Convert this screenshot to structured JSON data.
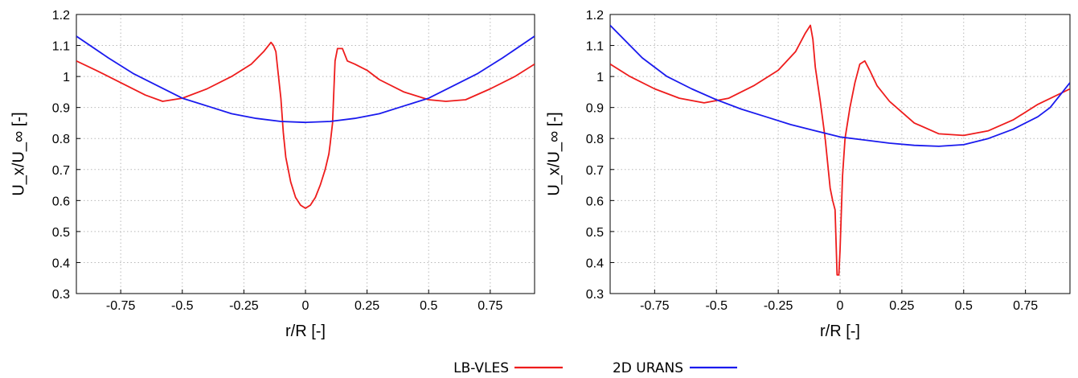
{
  "chart_data": [
    {
      "type": "line",
      "xlabel": "r/R [-]",
      "ylabel": "U_x/U_∞ [-]",
      "xlim": [
        -0.93,
        0.93
      ],
      "ylim": [
        0.3,
        1.2
      ],
      "xticks": [
        -0.75,
        -0.5,
        -0.25,
        0,
        0.25,
        0.5,
        0.75
      ],
      "xtick_labels": [
        "-0.75",
        "-0.5",
        "-0.25",
        "0",
        "0.25",
        "0.5",
        "0.75"
      ],
      "yticks": [
        0.3,
        0.4,
        0.5,
        0.6,
        0.7,
        0.8,
        0.9,
        1.0,
        1.1,
        1.2
      ],
      "ytick_labels": [
        "0.3",
        "0.4",
        "0.5",
        "0.6",
        "0.7",
        "0.8",
        "0.9",
        "1",
        "1.1",
        "1.2"
      ],
      "grid": true,
      "series": [
        {
          "name": "LB-VLES",
          "color": "#ee1c1c",
          "x": [
            -0.93,
            -0.85,
            -0.75,
            -0.65,
            -0.58,
            -0.5,
            -0.4,
            -0.3,
            -0.22,
            -0.17,
            -0.14,
            -0.13,
            -0.12,
            -0.115,
            -0.1,
            -0.09,
            -0.08,
            -0.06,
            -0.04,
            -0.02,
            0,
            0.02,
            0.04,
            0.06,
            0.08,
            0.095,
            0.1,
            0.11,
            0.12,
            0.13,
            0.15,
            0.17,
            0.2,
            0.25,
            0.3,
            0.4,
            0.5,
            0.57,
            0.65,
            0.75,
            0.85,
            0.93
          ],
          "y": [
            1.05,
            1.02,
            0.98,
            0.94,
            0.92,
            0.93,
            0.96,
            1.0,
            1.04,
            1.08,
            1.11,
            1.1,
            1.08,
            1.04,
            0.93,
            0.82,
            0.74,
            0.66,
            0.61,
            0.585,
            0.575,
            0.585,
            0.61,
            0.65,
            0.7,
            0.75,
            0.78,
            0.85,
            1.05,
            1.09,
            1.09,
            1.05,
            1.04,
            1.02,
            0.99,
            0.95,
            0.925,
            0.92,
            0.925,
            0.96,
            1.0,
            1.04
          ]
        },
        {
          "name": "2D URANS",
          "color": "#1a1aee",
          "x": [
            -0.93,
            -0.8,
            -0.7,
            -0.6,
            -0.5,
            -0.4,
            -0.3,
            -0.2,
            -0.1,
            0,
            0.1,
            0.2,
            0.3,
            0.4,
            0.5,
            0.6,
            0.7,
            0.8,
            0.93
          ],
          "y": [
            1.13,
            1.06,
            1.01,
            0.97,
            0.93,
            0.905,
            0.88,
            0.865,
            0.855,
            0.852,
            0.855,
            0.865,
            0.88,
            0.905,
            0.93,
            0.97,
            1.01,
            1.06,
            1.13
          ]
        }
      ]
    },
    {
      "type": "line",
      "xlabel": "r/R [-]",
      "ylabel": "U_x/U_∞ [-]",
      "xlim": [
        -0.93,
        0.93
      ],
      "ylim": [
        0.3,
        1.2
      ],
      "xticks": [
        -0.75,
        -0.5,
        -0.25,
        0,
        0.25,
        0.5,
        0.75
      ],
      "xtick_labels": [
        "-0.75",
        "-0.5",
        "-0.25",
        "0",
        "0.25",
        "0.5",
        "0.75"
      ],
      "yticks": [
        0.3,
        0.4,
        0.5,
        0.6,
        0.7,
        0.8,
        0.9,
        1.0,
        1.1,
        1.2
      ],
      "ytick_labels": [
        "0.3",
        "0.4",
        "0.5",
        "0.6",
        "0.7",
        "0.8",
        "0.9",
        "1",
        "1.1",
        "1.2"
      ],
      "grid": true,
      "series": [
        {
          "name": "LB-VLES",
          "color": "#ee1c1c",
          "x": [
            -0.93,
            -0.85,
            -0.75,
            -0.65,
            -0.55,
            -0.45,
            -0.35,
            -0.25,
            -0.18,
            -0.14,
            -0.12,
            -0.11,
            -0.1,
            -0.08,
            -0.06,
            -0.04,
            -0.03,
            -0.02,
            -0.012,
            -0.005,
            0,
            0.01,
            0.02,
            0.04,
            0.06,
            0.08,
            0.1,
            0.12,
            0.15,
            0.2,
            0.3,
            0.4,
            0.5,
            0.6,
            0.7,
            0.8,
            0.93
          ],
          "y": [
            1.04,
            1.0,
            0.96,
            0.93,
            0.915,
            0.93,
            0.97,
            1.02,
            1.08,
            1.14,
            1.165,
            1.12,
            1.03,
            0.92,
            0.8,
            0.64,
            0.6,
            0.57,
            0.36,
            0.36,
            0.44,
            0.68,
            0.8,
            0.9,
            0.98,
            1.04,
            1.05,
            1.02,
            0.97,
            0.92,
            0.85,
            0.815,
            0.81,
            0.825,
            0.86,
            0.91,
            0.96
          ]
        },
        {
          "name": "2D URANS",
          "color": "#1a1aee",
          "x": [
            -0.93,
            -0.8,
            -0.7,
            -0.6,
            -0.5,
            -0.4,
            -0.3,
            -0.2,
            -0.1,
            0,
            0.1,
            0.2,
            0.3,
            0.4,
            0.5,
            0.6,
            0.7,
            0.8,
            0.85,
            0.93
          ],
          "y": [
            1.165,
            1.06,
            1.0,
            0.96,
            0.925,
            0.895,
            0.87,
            0.845,
            0.825,
            0.805,
            0.795,
            0.785,
            0.778,
            0.775,
            0.78,
            0.8,
            0.83,
            0.87,
            0.9,
            0.98
          ]
        }
      ]
    }
  ],
  "legend": {
    "items": [
      {
        "label": "LB-VLES",
        "color": "#ee1c1c"
      },
      {
        "label": "2D URANS",
        "color": "#1a1aee"
      }
    ]
  }
}
